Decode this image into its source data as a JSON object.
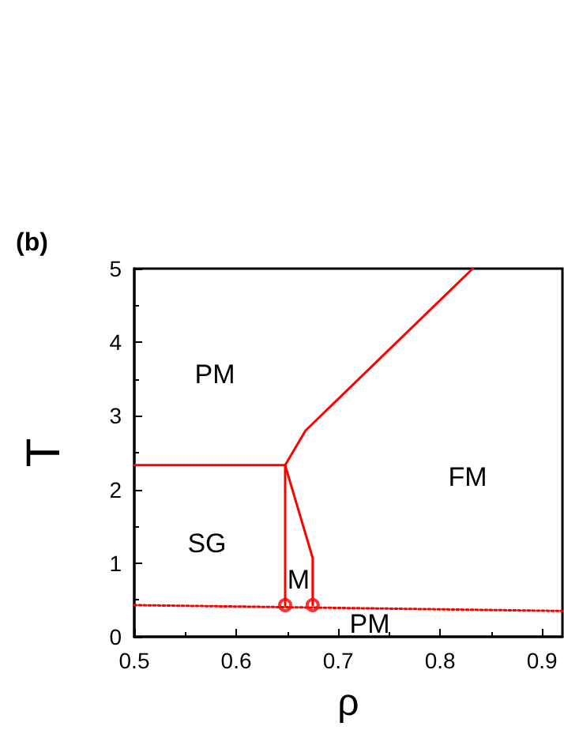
{
  "chart_data": {
    "type": "line",
    "xlabel": "ρ",
    "ylabel": "T",
    "xlim": [
      0.5,
      0.92
    ],
    "xticks": [
      0.5,
      0.6,
      0.7,
      0.8,
      0.9
    ],
    "ylim": [
      0,
      5
    ],
    "yticks": [
      0,
      1,
      2,
      3,
      4,
      5
    ],
    "grid": false,
    "series": [
      {
        "color": "#ff0000",
        "line_style": "solid",
        "marker": "none",
        "x": [
          0.5,
          0.648
        ],
        "values": [
          2.33,
          2.33
        ]
      },
      {
        "color": "#ff0000",
        "line_style": "solid",
        "marker": "none",
        "x": [
          0.648,
          0.648
        ],
        "values": [
          2.33,
          0.43
        ]
      },
      {
        "color": "#ff0000",
        "line_style": "solid",
        "marker": "none",
        "x": [
          0.648,
          0.675,
          0.675
        ],
        "values": [
          2.33,
          1.07,
          0.43
        ]
      },
      {
        "color": "#ff0000",
        "line_style": "solid",
        "marker": "none",
        "x": [
          0.648,
          0.668,
          0.832
        ],
        "values": [
          2.33,
          2.8,
          5.0
        ]
      },
      {
        "color": "#ff0000",
        "line_style": "dotted",
        "marker": "none",
        "x": [
          0.5,
          0.92
        ],
        "values": [
          0.43,
          0.35
        ]
      },
      {
        "type": "scatter",
        "color": "#ff0000",
        "marker": "circle",
        "x": [
          0.648,
          0.675
        ],
        "values": [
          0.43,
          0.43
        ]
      }
    ],
    "annotations": [
      "(b)",
      "PM",
      "SG",
      "M",
      "FM",
      "PM"
    ]
  }
}
